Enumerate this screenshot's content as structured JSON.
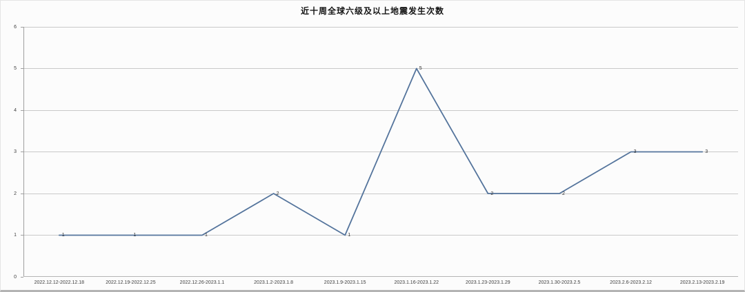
{
  "title": "近十周全球六级及以上地震发生次数",
  "colors": {
    "line": "#54749c",
    "grid": "#c9c9c9",
    "axis": "#9f9f9f",
    "baseline": "#b5b5b5",
    "text": "#3c3c3c",
    "title_text": "#141414",
    "background": "#fcfcfc"
  },
  "chart_data": {
    "type": "line",
    "title": "近十周全球六级及以上地震发生次数",
    "categories": [
      "2022.12.12-2022.12.18",
      "2022.12.19-2022.12.25",
      "2022.12.26-2023.1.1",
      "2023.1.2-2023.1.8",
      "2023.1.9-2023.1.15",
      "2023.1.16-2023.1.22",
      "2023.1.23-2023.1.29",
      "2023.1.30-2023.2.5",
      "2023.2.6-2023.2.12",
      "2023.2.13-2023.2.19"
    ],
    "values": [
      1,
      1,
      1,
      2,
      1,
      5,
      2,
      2,
      3,
      3
    ],
    "data_labels": [
      "1",
      "1",
      "1",
      "2",
      "1",
      "5",
      "2",
      "2",
      "3",
      "3"
    ],
    "xlabel": "",
    "ylabel": "",
    "ylim": [
      0,
      6
    ],
    "yticks": [
      0,
      1,
      2,
      3,
      4,
      5,
      6
    ],
    "grid": true,
    "legend_position": "none",
    "marker": "none"
  }
}
